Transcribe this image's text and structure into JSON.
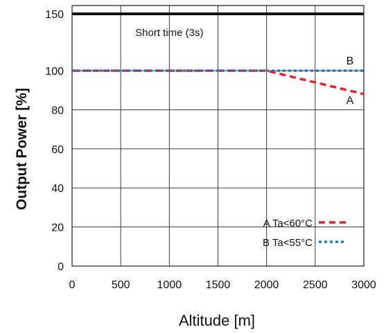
{
  "chart_data": {
    "type": "line",
    "xlabel": "Altitude [m]",
    "ylabel": "Output Power [%]",
    "xlim": [
      0,
      3000
    ],
    "ylim": [
      0,
      150
    ],
    "x_ticks": [
      "0",
      "500",
      "1000",
      "1500",
      "2000",
      "2500",
      "3000"
    ],
    "y_ticks": [
      "0",
      "20",
      "40",
      "60",
      "80",
      "100",
      "150"
    ],
    "grid": true,
    "legend_position": "bottom-right",
    "series": [
      {
        "key": "A",
        "name": "A Ta<60°C",
        "end_label": "A",
        "color": "#e8202a",
        "style": "dashed",
        "x": [
          0,
          2000,
          3000
        ],
        "y": [
          100,
          100,
          88
        ]
      },
      {
        "key": "B",
        "name": "B Ta<55°C",
        "end_label": "B",
        "color": "#1f78c8",
        "style": "dotted",
        "x": [
          0,
          3000
        ],
        "y": [
          100,
          100
        ]
      }
    ],
    "reference_line": {
      "y": 150,
      "label": "Short time (3s)",
      "color": "#111111"
    }
  }
}
